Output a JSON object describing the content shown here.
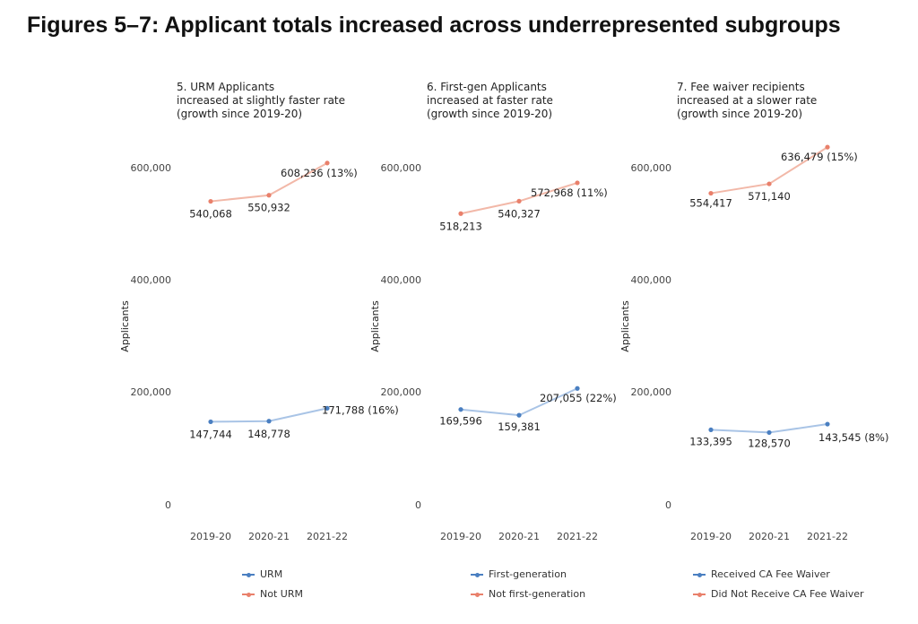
{
  "figure_title": "Figures 5–7: Applicant totals increased across underrepresented subgroups",
  "colors": {
    "lower_series": "#4a7fc1",
    "upper_series": "#e9806b",
    "upper_line": "#f2b8a8",
    "lower_line": "#a9c4e6"
  },
  "chart_data": [
    {
      "type": "line",
      "title_lines": [
        "5. URM Applicants",
        "increased at slightly faster rate",
        "(growth since 2019-20)"
      ],
      "ylabel": "Applicants",
      "categories": [
        "2019-20",
        "2020-21",
        "2021-22"
      ],
      "y_ticks": [
        "600,000",
        "400,000",
        "200,000",
        "0"
      ],
      "ylim": [
        0,
        600000
      ],
      "series": [
        {
          "name": "URM",
          "values": [
            147744,
            148778,
            171788
          ],
          "labels": [
            "147,744",
            "148,778",
            "171,788 (16%)"
          ]
        },
        {
          "name": "Not URM",
          "values": [
            540068,
            550932,
            608236
          ],
          "labels": [
            "540,068",
            "550,932",
            "608,236 (13%)"
          ]
        }
      ],
      "legend": [
        "URM",
        "Not URM"
      ]
    },
    {
      "type": "line",
      "title_lines": [
        "6. First-gen Applicants",
        "increased at faster rate",
        "(growth since 2019-20)"
      ],
      "ylabel": "Applicants",
      "categories": [
        "2019-20",
        "2020-21",
        "2021-22"
      ],
      "y_ticks": [
        "600,000",
        "400,000",
        "200,000",
        "0"
      ],
      "ylim": [
        0,
        600000
      ],
      "series": [
        {
          "name": "First-generation",
          "values": [
            169596,
            159381,
            207055
          ],
          "labels": [
            "169,596",
            "159,381",
            "207,055 (22%)"
          ]
        },
        {
          "name": "Not first-generation",
          "values": [
            518213,
            540327,
            572968
          ],
          "labels": [
            "518,213",
            "540,327",
            "572,968 (11%)"
          ]
        }
      ],
      "legend": [
        "First-generation",
        "Not first-generation"
      ]
    },
    {
      "type": "line",
      "title_lines": [
        "7. Fee waiver recipients",
        "increased at a slower rate",
        "(growth since 2019-20)"
      ],
      "ylabel": "Applicants",
      "categories": [
        "2019-20",
        "2020-21",
        "2021-22"
      ],
      "y_ticks": [
        "600,000",
        "400,000",
        "200,000",
        "0"
      ],
      "ylim": [
        0,
        600000
      ],
      "series": [
        {
          "name": "Received CA Fee Waiver",
          "values": [
            133395,
            128570,
            143545
          ],
          "labels": [
            "133,395",
            "128,570",
            "143,545 (8%)"
          ]
        },
        {
          "name": "Did Not Receive CA Fee Waiver",
          "values": [
            554417,
            571140,
            636479
          ],
          "labels": [
            "554,417",
            "571,140",
            "636,479 (15%)"
          ]
        }
      ],
      "legend": [
        "Received CA Fee Waiver",
        "Did Not Receive CA Fee Waiver"
      ]
    }
  ]
}
